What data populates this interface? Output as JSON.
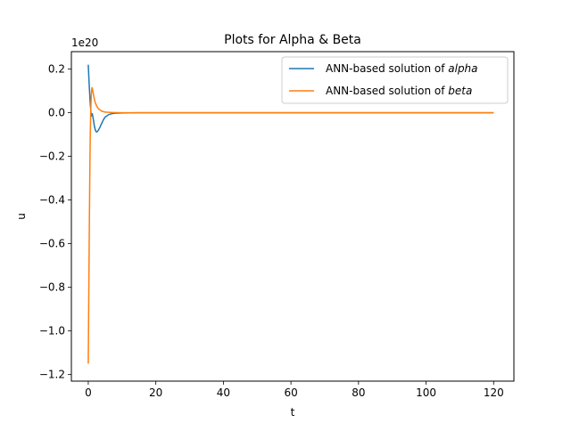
{
  "chart_data": {
    "type": "line",
    "title": "Plots for Alpha & Beta",
    "xlabel": "t",
    "ylabel": "u",
    "y_offset_label": "1e20",
    "xlim": [
      -5,
      126
    ],
    "ylim": [
      -1.23,
      0.28
    ],
    "x_ticks": [
      0,
      20,
      40,
      60,
      80,
      100,
      120
    ],
    "x_tick_labels": [
      "0",
      "20",
      "40",
      "60",
      "80",
      "100",
      "120"
    ],
    "y_ticks": [
      -1.2,
      -1.0,
      -0.8,
      -0.6,
      -0.4,
      -0.2,
      0.0,
      0.2
    ],
    "y_tick_labels": [
      "−1.2",
      "−1.0",
      "−0.8",
      "−0.6",
      "−0.4",
      "−0.2",
      "0.0",
      "0.2"
    ],
    "grid": false,
    "legend_position": "top-right",
    "legend": {
      "alpha": {
        "prefix": "ANN-based solution of ",
        "name": "alpha"
      },
      "beta": {
        "prefix": "ANN-based solution of ",
        "name": "beta"
      }
    },
    "series": [
      {
        "name": "ANN-based solution of alpha",
        "color": "#1f77b4",
        "x": [
          0,
          0.3,
          0.6,
          0.9,
          1.2,
          1.5,
          1.8,
          2.1,
          2.4,
          2.7,
          3.0,
          3.5,
          4.0,
          4.5,
          5.0,
          6.0,
          7.0,
          8.0,
          10.0,
          15.0,
          30.0,
          60.0,
          90.0,
          120.0
        ],
        "y": [
          0.22,
          0.12,
          0.04,
          -0.015,
          -0.005,
          -0.03,
          -0.06,
          -0.08,
          -0.088,
          -0.086,
          -0.08,
          -0.065,
          -0.048,
          -0.032,
          -0.02,
          -0.009,
          -0.004,
          -0.002,
          -0.001,
          0.0,
          0.0,
          0.0,
          0.0,
          0.0
        ]
      },
      {
        "name": "ANN-based solution of beta",
        "color": "#ff7f0e",
        "x": [
          0,
          0.1,
          0.2,
          0.3,
          0.4,
          0.5,
          0.6,
          0.7,
          0.8,
          0.9,
          1.0,
          1.1,
          1.2,
          1.4,
          1.7,
          2.0,
          2.5,
          3.0,
          4.0,
          5.0,
          7.0,
          10.0,
          20.0,
          60.0,
          90.0,
          120.0
        ],
        "y": [
          -1.15,
          -0.95,
          -0.75,
          -0.55,
          -0.38,
          -0.22,
          -0.1,
          -0.02,
          0.04,
          0.08,
          0.105,
          0.115,
          0.112,
          0.095,
          0.07,
          0.05,
          0.03,
          0.018,
          0.007,
          0.003,
          0.001,
          0.0,
          0.0,
          0.0,
          0.0,
          0.0
        ]
      }
    ]
  }
}
